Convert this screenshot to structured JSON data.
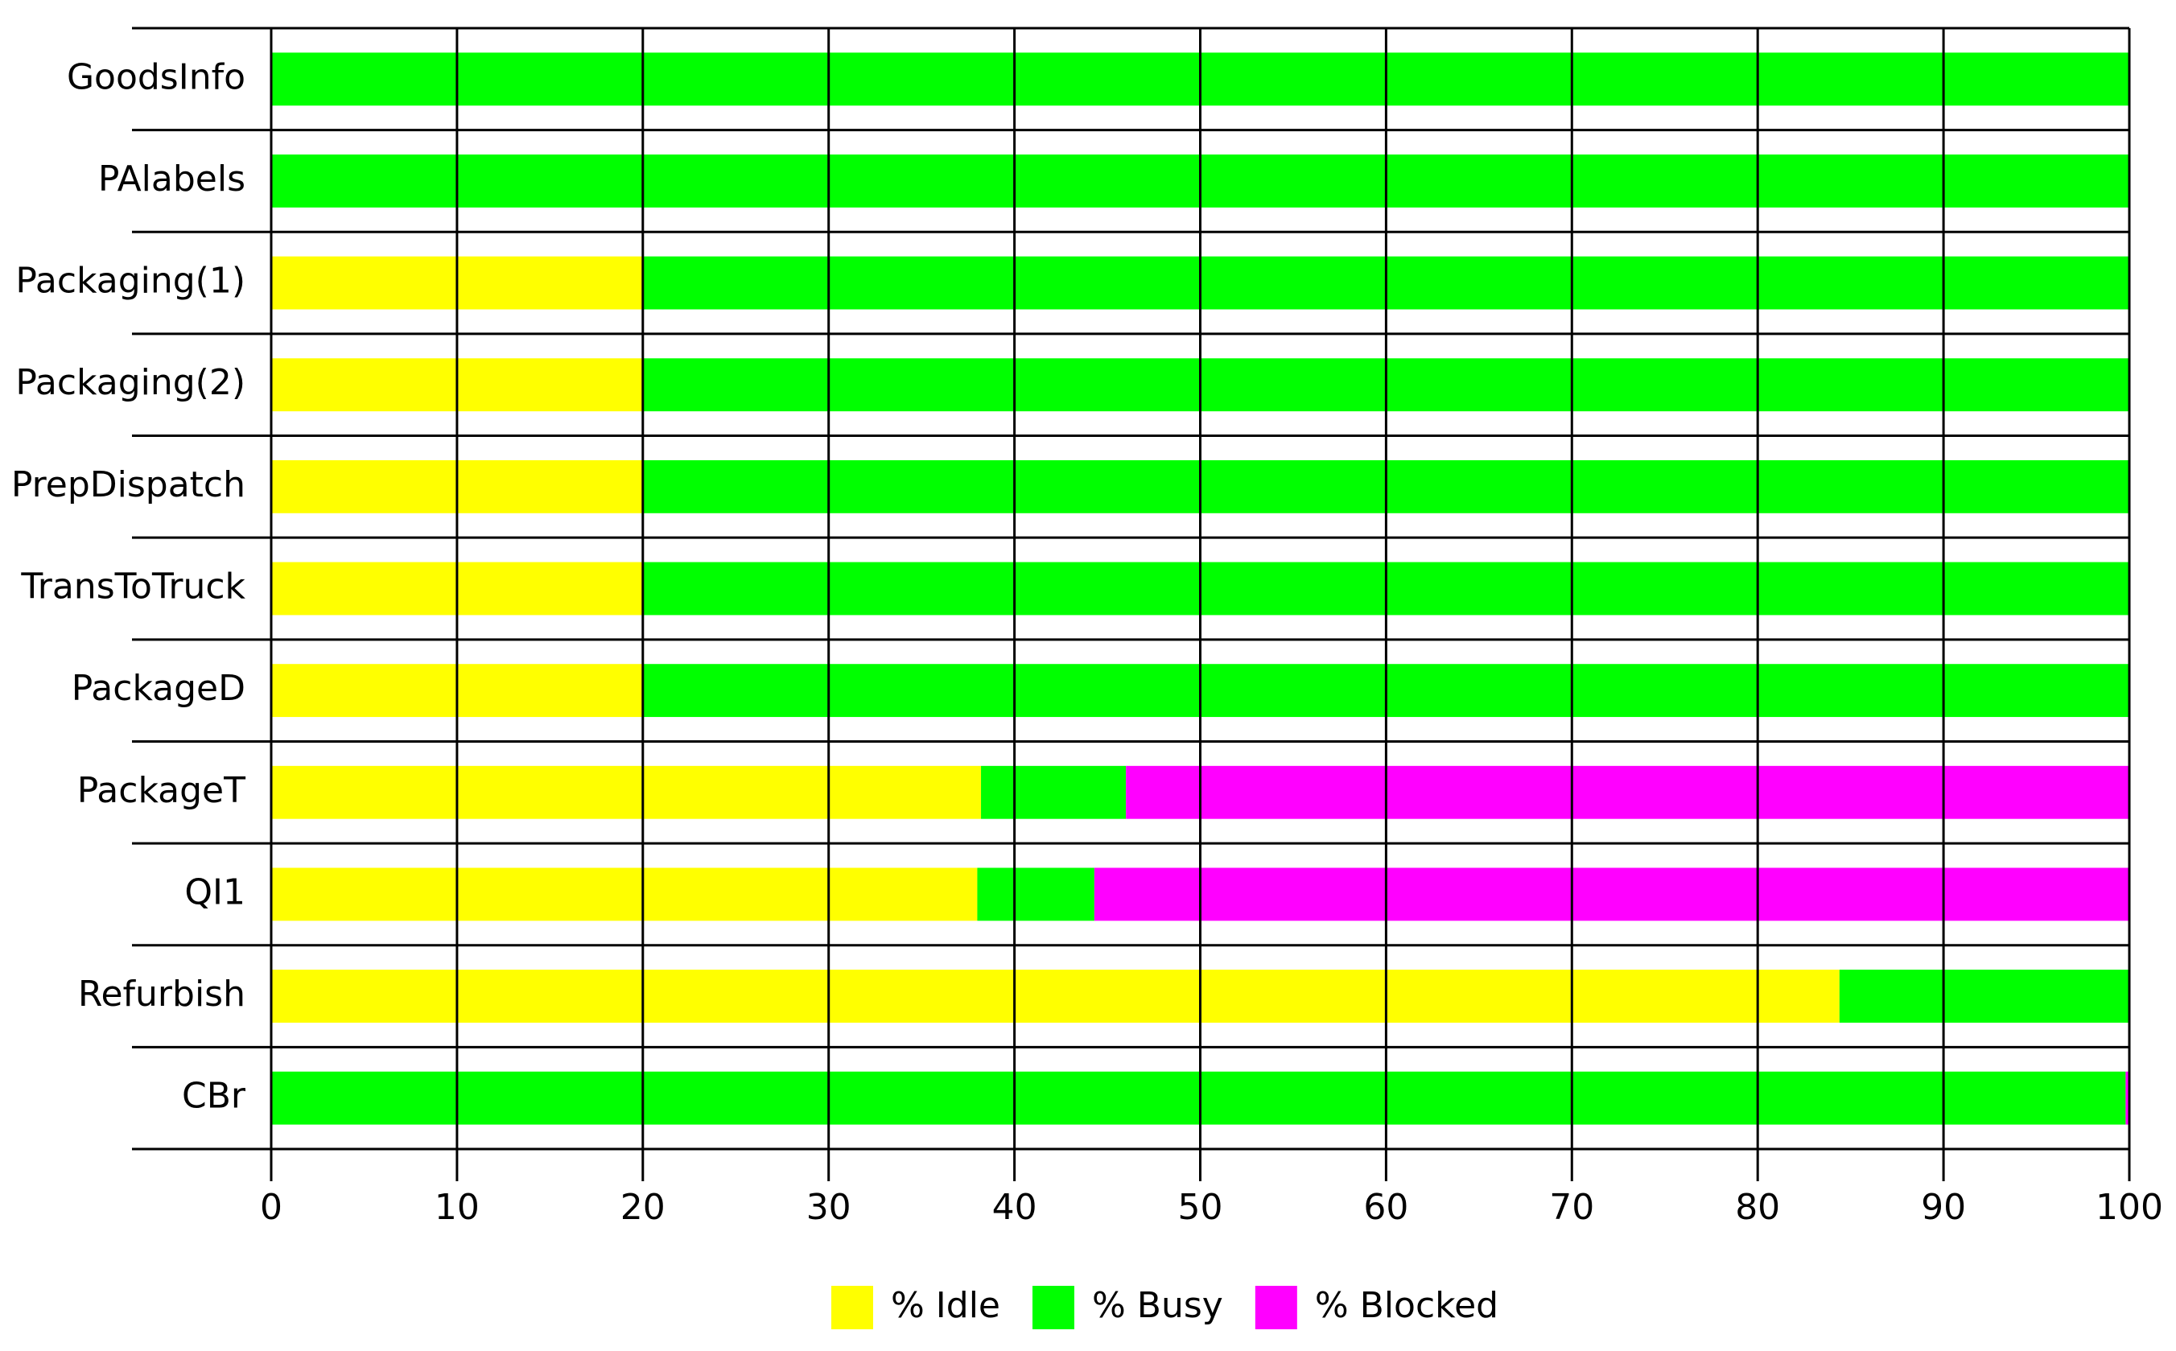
{
  "chart_data": {
    "type": "stacked-bar-horizontal",
    "categories": [
      "GoodsInfo",
      "PAlabels",
      "Packaging(1)",
      "Packaging(2)",
      "PrepDispatch",
      "TransToTruck",
      "PackageD",
      "PackageT",
      "QI1",
      "Refurbish",
      "CBr"
    ],
    "series": [
      {
        "name": "% Idle",
        "color": "#ffff00",
        "values": [
          0,
          0,
          20,
          20,
          20,
          20,
          20,
          38.2,
          38,
          84.4,
          0
        ]
      },
      {
        "name": "% Busy",
        "color": "#00ff00",
        "values": [
          100,
          100,
          80,
          80,
          80,
          80,
          80,
          7.8,
          6.3,
          15.6,
          99.8
        ]
      },
      {
        "name": "% Blocked",
        "color": "#ff00ff",
        "values": [
          0,
          0,
          0,
          0,
          0,
          0,
          0,
          54,
          55.7,
          0,
          0.2
        ]
      }
    ],
    "xlim": [
      0,
      100
    ],
    "xticks": [
      0,
      10,
      20,
      30,
      40,
      50,
      60,
      70,
      80,
      90,
      100
    ],
    "grid": true,
    "legend": "bottom"
  }
}
